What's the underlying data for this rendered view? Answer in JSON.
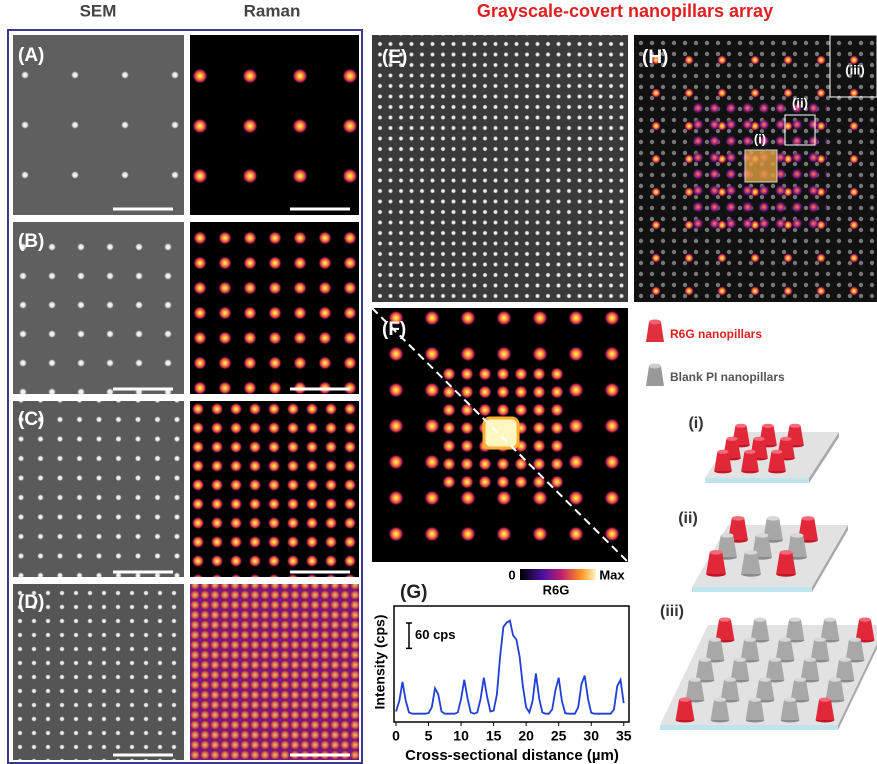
{
  "figure": {
    "headers": {
      "sem": "SEM",
      "raman": "Raman",
      "main": "Grayscale-covert nanopillars array"
    },
    "panel_labels": {
      "a": "(A)",
      "b": "(B)",
      "c": "(C)",
      "d": "(D)",
      "e": "(E)",
      "f": "(F)",
      "g": "(G)",
      "h": "(H)"
    },
    "h_regions": [
      "(i)",
      "(ii)",
      "(iii)"
    ],
    "colorbar": {
      "min_label": "0",
      "max_label": "Max",
      "title": "R6G"
    },
    "legend": {
      "red": "R6G nanopillars",
      "gray": "Blank PI nanopillars"
    },
    "illustrations": [
      "(i)",
      "(ii)",
      "(iii)"
    ],
    "plot_g": {
      "type": "line",
      "y_label": "Intensity (cps)",
      "x_label": "Cross-sectional distance (µm)",
      "scale_bar": {
        "value": 60,
        "label": "60 cps"
      },
      "color": "#1f3fd6",
      "xlim": [
        0,
        35.5
      ],
      "ylim": [
        0,
        260
      ],
      "xticks": [
        0,
        5,
        10,
        15,
        20,
        25,
        30,
        35
      ],
      "x": [
        0,
        0.5,
        1,
        1.5,
        2,
        2.5,
        3,
        3.5,
        4,
        4.5,
        5,
        5.5,
        6,
        6.5,
        7,
        7.5,
        8,
        8.5,
        9,
        9.5,
        10,
        10.5,
        11,
        11.5,
        12,
        12.5,
        13,
        13.5,
        14,
        14.5,
        15,
        15.5,
        16,
        16.5,
        17,
        17.5,
        18,
        18.5,
        19,
        19.5,
        20,
        20.5,
        21,
        21.5,
        22,
        22.5,
        23,
        23.5,
        24,
        24.5,
        25,
        25.5,
        26,
        26.5,
        27,
        27.5,
        28,
        28.5,
        29,
        29.5,
        30,
        30.5,
        31,
        31.5,
        32,
        32.5,
        33,
        33.5,
        34,
        34.5,
        35
      ],
      "values": [
        20,
        45,
        90,
        45,
        18,
        15,
        15,
        15,
        15,
        15,
        16,
        30,
        75,
        60,
        20,
        15,
        15,
        15,
        15,
        18,
        50,
        95,
        50,
        18,
        15,
        18,
        50,
        100,
        55,
        20,
        22,
        60,
        150,
        220,
        230,
        235,
        200,
        190,
        150,
        80,
        30,
        18,
        45,
        110,
        50,
        18,
        15,
        15,
        25,
        70,
        100,
        45,
        16,
        15,
        15,
        15,
        30,
        85,
        105,
        50,
        17,
        15,
        15,
        15,
        15,
        15,
        15,
        25,
        80,
        95,
        40
      ]
    }
  }
}
